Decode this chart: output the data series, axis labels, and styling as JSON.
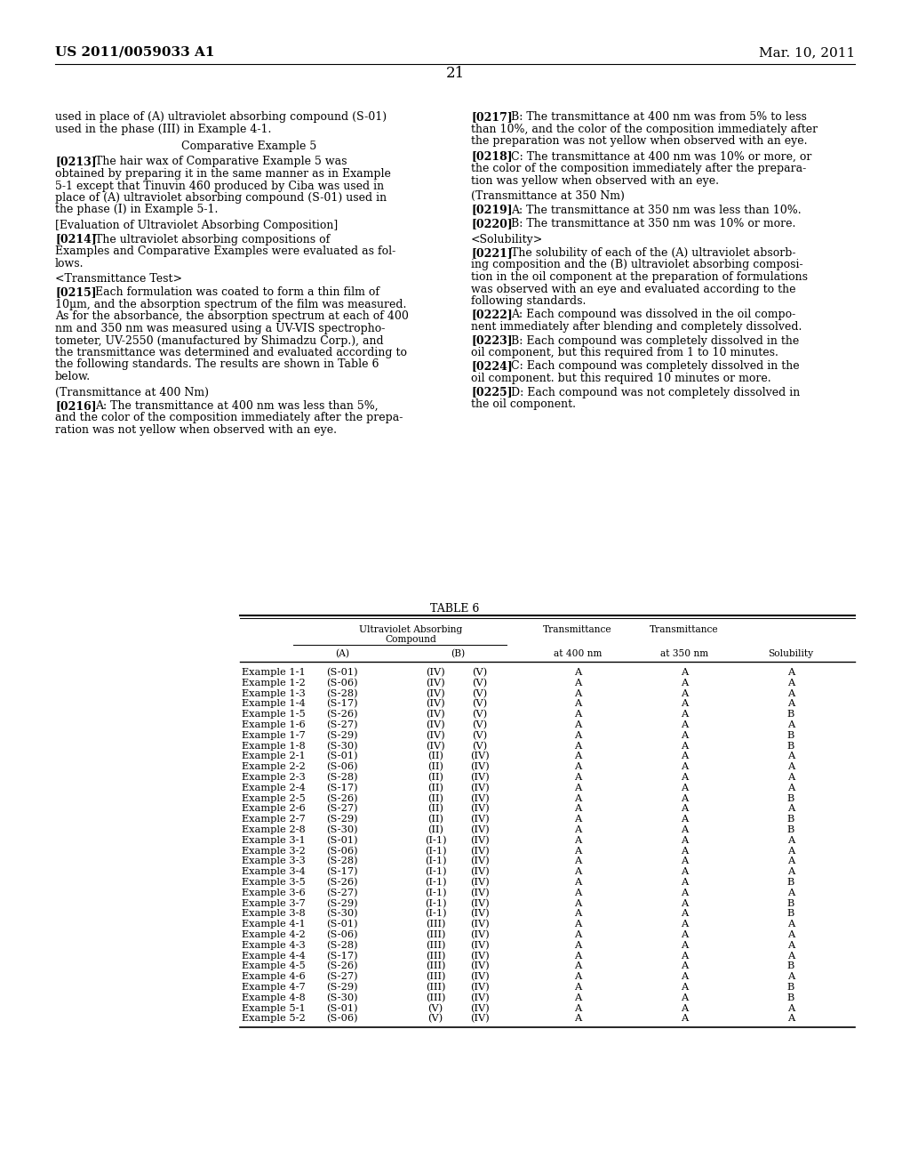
{
  "page_header_left": "US 2011/0059033 A1",
  "page_header_right": "Mar. 10, 2011",
  "page_number": "21",
  "background_color": "#ffffff",
  "font_size_body": 9.0,
  "font_size_header": 10.0,
  "font_size_table": 8.2,
  "table_rows": [
    [
      "Example 1-1",
      "(S-01)",
      "(IV)",
      "(V)",
      "A",
      "A",
      "A"
    ],
    [
      "Example 1-2",
      "(S-06)",
      "(IV)",
      "(V)",
      "A",
      "A",
      "A"
    ],
    [
      "Example 1-3",
      "(S-28)",
      "(IV)",
      "(V)",
      "A",
      "A",
      "A"
    ],
    [
      "Example 1-4",
      "(S-17)",
      "(IV)",
      "(V)",
      "A",
      "A",
      "A"
    ],
    [
      "Example 1-5",
      "(S-26)",
      "(IV)",
      "(V)",
      "A",
      "A",
      "B"
    ],
    [
      "Example 1-6",
      "(S-27)",
      "(IV)",
      "(V)",
      "A",
      "A",
      "A"
    ],
    [
      "Example 1-7",
      "(S-29)",
      "(IV)",
      "(V)",
      "A",
      "A",
      "B"
    ],
    [
      "Example 1-8",
      "(S-30)",
      "(IV)",
      "(V)",
      "A",
      "A",
      "B"
    ],
    [
      "Example 2-1",
      "(S-01)",
      "(II)",
      "(IV)",
      "A",
      "A",
      "A"
    ],
    [
      "Example 2-2",
      "(S-06)",
      "(II)",
      "(IV)",
      "A",
      "A",
      "A"
    ],
    [
      "Example 2-3",
      "(S-28)",
      "(II)",
      "(IV)",
      "A",
      "A",
      "A"
    ],
    [
      "Example 2-4",
      "(S-17)",
      "(II)",
      "(IV)",
      "A",
      "A",
      "A"
    ],
    [
      "Example 2-5",
      "(S-26)",
      "(II)",
      "(IV)",
      "A",
      "A",
      "B"
    ],
    [
      "Example 2-6",
      "(S-27)",
      "(II)",
      "(IV)",
      "A",
      "A",
      "A"
    ],
    [
      "Example 2-7",
      "(S-29)",
      "(II)",
      "(IV)",
      "A",
      "A",
      "B"
    ],
    [
      "Example 2-8",
      "(S-30)",
      "(II)",
      "(IV)",
      "A",
      "A",
      "B"
    ],
    [
      "Example 3-1",
      "(S-01)",
      "(I-1)",
      "(IV)",
      "A",
      "A",
      "A"
    ],
    [
      "Example 3-2",
      "(S-06)",
      "(I-1)",
      "(IV)",
      "A",
      "A",
      "A"
    ],
    [
      "Example 3-3",
      "(S-28)",
      "(I-1)",
      "(IV)",
      "A",
      "A",
      "A"
    ],
    [
      "Example 3-4",
      "(S-17)",
      "(I-1)",
      "(IV)",
      "A",
      "A",
      "A"
    ],
    [
      "Example 3-5",
      "(S-26)",
      "(I-1)",
      "(IV)",
      "A",
      "A",
      "B"
    ],
    [
      "Example 3-6",
      "(S-27)",
      "(I-1)",
      "(IV)",
      "A",
      "A",
      "A"
    ],
    [
      "Example 3-7",
      "(S-29)",
      "(I-1)",
      "(IV)",
      "A",
      "A",
      "B"
    ],
    [
      "Example 3-8",
      "(S-30)",
      "(I-1)",
      "(IV)",
      "A",
      "A",
      "B"
    ],
    [
      "Example 4-1",
      "(S-01)",
      "(III)",
      "(IV)",
      "A",
      "A",
      "A"
    ],
    [
      "Example 4-2",
      "(S-06)",
      "(III)",
      "(IV)",
      "A",
      "A",
      "A"
    ],
    [
      "Example 4-3",
      "(S-28)",
      "(III)",
      "(IV)",
      "A",
      "A",
      "A"
    ],
    [
      "Example 4-4",
      "(S-17)",
      "(III)",
      "(IV)",
      "A",
      "A",
      "A"
    ],
    [
      "Example 4-5",
      "(S-26)",
      "(III)",
      "(IV)",
      "A",
      "A",
      "B"
    ],
    [
      "Example 4-6",
      "(S-27)",
      "(III)",
      "(IV)",
      "A",
      "A",
      "A"
    ],
    [
      "Example 4-7",
      "(S-29)",
      "(III)",
      "(IV)",
      "A",
      "A",
      "B"
    ],
    [
      "Example 4-8",
      "(S-30)",
      "(III)",
      "(IV)",
      "A",
      "A",
      "B"
    ],
    [
      "Example 5-1",
      "(S-01)",
      "(V)",
      "(IV)",
      "A",
      "A",
      "A"
    ],
    [
      "Example 5-2",
      "(S-06)",
      "(V)",
      "(IV)",
      "A",
      "A",
      "A"
    ]
  ]
}
